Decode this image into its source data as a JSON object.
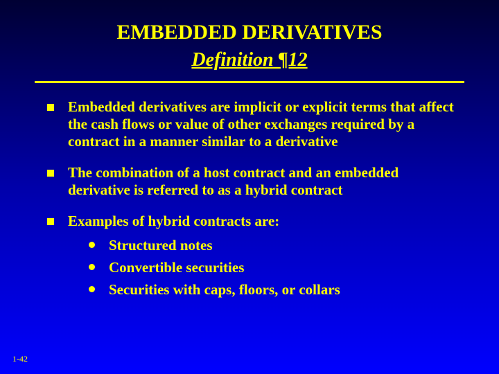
{
  "slide": {
    "title": "EMBEDDED DERIVATIVES",
    "subtitle": "Definition ¶12",
    "bullets": [
      {
        "text": "Embedded derivatives are implicit or explicit terms that affect the cash flows or value of other exchanges required by a contract in a manner similar to a derivative"
      },
      {
        "text": "The combination of a host contract and an embedded derivative is referred to as a hybrid contract"
      },
      {
        "text": "Examples of hybrid contracts are:",
        "subitems": [
          "Structured notes",
          "Convertible securities",
          "Securities with caps, floors, or collars"
        ]
      }
    ],
    "page_number": "1-42"
  },
  "style": {
    "background_gradient_top": "#000033",
    "background_gradient_mid": "#0000aa",
    "background_gradient_bottom": "#0000ff",
    "text_color": "#ffff00",
    "title_fontsize": 30,
    "subtitle_fontsize": 28,
    "body_fontsize": 21,
    "pagenum_fontsize": 12,
    "bullet_shape": "square",
    "sub_bullet_shape": "circle",
    "divider_color": "#ffff00",
    "divider_thickness": 3,
    "font_family": "Times New Roman"
  }
}
